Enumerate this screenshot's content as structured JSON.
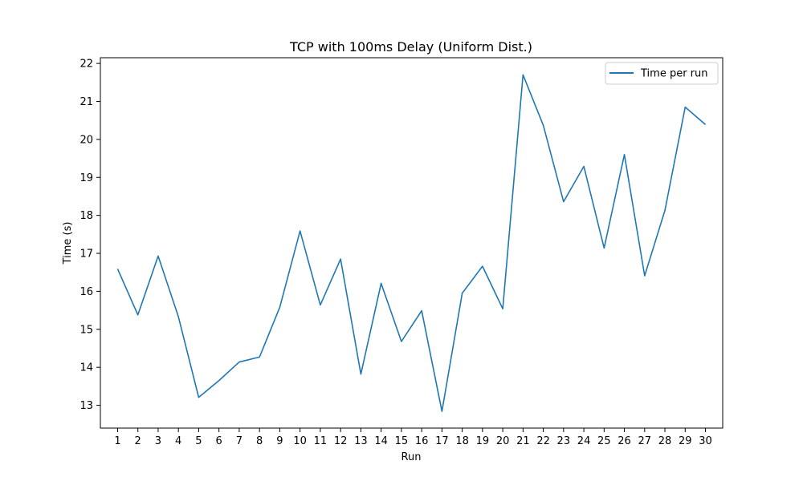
{
  "chart_data": {
    "type": "line",
    "title": "TCP with 100ms Delay (Uniform Dist.)",
    "xlabel": "Run",
    "ylabel": "Time (s)",
    "x": [
      1,
      2,
      3,
      4,
      5,
      6,
      7,
      8,
      9,
      10,
      11,
      12,
      13,
      14,
      15,
      16,
      17,
      18,
      19,
      20,
      21,
      22,
      23,
      24,
      25,
      26,
      27,
      28,
      29,
      30
    ],
    "series": [
      {
        "name": "Time per run",
        "color": "#1f77b4",
        "values": [
          16.59,
          15.38,
          16.93,
          15.33,
          13.21,
          13.65,
          14.14,
          14.27,
          15.58,
          17.59,
          15.64,
          16.85,
          13.82,
          16.21,
          14.68,
          15.49,
          12.84,
          15.95,
          16.66,
          15.54,
          21.7,
          20.37,
          18.36,
          19.29,
          17.14,
          19.6,
          16.41,
          18.13,
          20.85,
          20.39
        ]
      }
    ],
    "xticks": [
      "1",
      "2",
      "3",
      "4",
      "5",
      "6",
      "7",
      "8",
      "9",
      "10",
      "11",
      "12",
      "13",
      "14",
      "15",
      "16",
      "17",
      "18",
      "19",
      "20",
      "21",
      "22",
      "23",
      "24",
      "25",
      "26",
      "27",
      "28",
      "29",
      "30"
    ],
    "yticks": [
      "13",
      "14",
      "15",
      "16",
      "17",
      "18",
      "19",
      "20",
      "21",
      "22"
    ],
    "ylim": [
      12.4,
      22.15
    ],
    "xlim": [
      0.15,
      30.85
    ],
    "grid": false,
    "legend_position": "top-right"
  }
}
